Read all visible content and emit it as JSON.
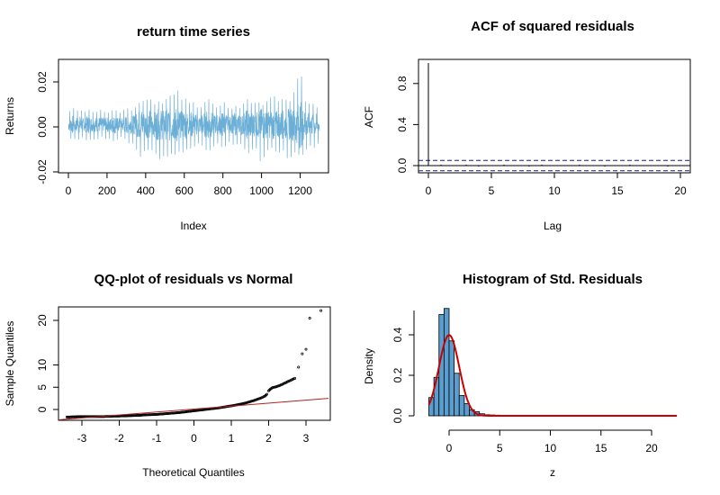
{
  "chart_data": [
    {
      "type": "line",
      "title": "return time series",
      "xlabel": "Index",
      "ylabel": "Returns",
      "xlim": [
        0,
        1300
      ],
      "ylim": [
        -0.02,
        0.03
      ],
      "x_ticks": [
        0,
        200,
        400,
        600,
        800,
        1000,
        1200
      ],
      "y_ticks": [
        -0.02,
        0.0,
        0.02
      ],
      "y_tick_labels": [
        "-0.02",
        "0.00",
        "0.02"
      ],
      "color": "#6baed6",
      "series": [
        {
          "x": [
            0,
            20,
            40,
            60,
            80,
            100,
            120,
            140,
            160,
            180,
            200,
            220,
            240,
            260,
            280,
            300,
            320,
            340,
            360,
            380,
            400,
            420,
            440,
            460,
            480,
            500,
            520,
            540,
            560,
            580,
            600,
            620,
            640,
            660,
            680,
            700,
            720,
            740,
            760,
            780,
            800,
            820,
            840,
            860,
            880,
            900,
            920,
            940,
            960,
            980,
            1000,
            1020,
            1040,
            1060,
            1080,
            1100,
            1120,
            1140,
            1160,
            1180,
            1200,
            1220,
            1240,
            1260,
            1280,
            1300
          ],
          "high": [
            0.006,
            0.009,
            0.007,
            0.008,
            0.006,
            0.008,
            0.007,
            0.006,
            0.008,
            0.007,
            0.006,
            0.007,
            0.008,
            0.006,
            0.007,
            0.009,
            0.007,
            0.008,
            0.01,
            0.012,
            0.011,
            0.014,
            0.009,
            0.012,
            0.01,
            0.011,
            0.015,
            0.012,
            0.019,
            0.011,
            0.014,
            0.01,
            0.012,
            0.009,
            0.008,
            0.01,
            0.013,
            0.011,
            0.009,
            0.008,
            0.012,
            0.009,
            0.007,
            0.01,
            0.008,
            0.009,
            0.013,
            0.011,
            0.01,
            0.012,
            0.009,
            0.011,
            0.012,
            0.015,
            0.011,
            0.012,
            0.013,
            0.01,
            0.014,
            0.018,
            0.028,
            0.012,
            0.01,
            0.011,
            0.009,
            0.008
          ],
          "low": [
            -0.004,
            -0.006,
            -0.005,
            -0.006,
            -0.004,
            -0.007,
            -0.005,
            -0.006,
            -0.005,
            -0.004,
            -0.006,
            -0.005,
            -0.007,
            -0.005,
            -0.004,
            -0.006,
            -0.008,
            -0.007,
            -0.012,
            -0.014,
            -0.009,
            -0.011,
            -0.01,
            -0.013,
            -0.015,
            -0.012,
            -0.014,
            -0.011,
            -0.013,
            -0.01,
            -0.012,
            -0.009,
            -0.01,
            -0.008,
            -0.007,
            -0.009,
            -0.011,
            -0.01,
            -0.008,
            -0.007,
            -0.01,
            -0.008,
            -0.006,
            -0.009,
            -0.007,
            -0.008,
            -0.011,
            -0.012,
            -0.009,
            -0.01,
            -0.018,
            -0.011,
            -0.01,
            -0.009,
            -0.012,
            -0.011,
            -0.01,
            -0.016,
            -0.012,
            -0.011,
            -0.013,
            -0.012,
            -0.009,
            -0.008,
            -0.01,
            -0.006
          ]
        }
      ]
    },
    {
      "type": "bar",
      "title": "ACF of squared residuals",
      "xlabel": "Lag",
      "ylabel": "ACF",
      "xlim": [
        -0.7,
        20.7
      ],
      "ylim": [
        -0.05,
        1.02
      ],
      "x_ticks": [
        0,
        5,
        10,
        15,
        20
      ],
      "y_ticks": [
        0.0,
        0.4,
        0.8
      ],
      "y_tick_labels": [
        "0.0",
        "0.4",
        "0.8"
      ],
      "lags": [
        0,
        1,
        2,
        3,
        4,
        5,
        6,
        7,
        8,
        9,
        10,
        11,
        12,
        13,
        14,
        15,
        16,
        17,
        18,
        19,
        20
      ],
      "values": [
        1.0,
        0.01,
        0.0,
        0.01,
        -0.01,
        0.0,
        0.01,
        0.0,
        -0.01,
        0.01,
        0.0,
        0.0,
        0.01,
        0.0,
        -0.01,
        0.0,
        0.01,
        0.0,
        0.0,
        -0.01,
        0.0
      ],
      "confidence_band": [
        -0.05,
        0.05
      ],
      "zero_line": 0.0
    },
    {
      "type": "scatter",
      "title": "QQ-plot of residuals vs Normal",
      "xlabel": "Theoretical Quantiles",
      "ylabel": "Sample Quantiles",
      "xlim": [
        -3.6,
        3.6
      ],
      "ylim": [
        -2.3,
        23.3
      ],
      "x_ticks": [
        -3,
        -2,
        -1,
        0,
        1,
        2,
        3
      ],
      "y_ticks": [
        0,
        5,
        10,
        20
      ],
      "reference_line": {
        "x": [
          -3.6,
          3.6
        ],
        "y": [
          -2.3,
          2.5
        ],
        "color": "#b22222"
      },
      "points": [
        [
          -3.4,
          -1.7
        ],
        [
          -3.1,
          -1.6
        ],
        [
          -2.95,
          -1.6
        ],
        [
          -2.85,
          -1.6
        ],
        [
          -2.75,
          -1.6
        ],
        [
          -2.65,
          -1.6
        ],
        [
          -2.55,
          -1.6
        ],
        [
          -2.45,
          -1.6
        ],
        [
          -2.35,
          -1.55
        ],
        [
          -2.25,
          -1.55
        ],
        [
          -2.15,
          -1.5
        ],
        [
          -2.05,
          -1.5
        ],
        [
          -1.95,
          -1.45
        ],
        [
          -1.85,
          -1.45
        ],
        [
          -1.75,
          -1.4
        ],
        [
          -1.6,
          -1.35
        ],
        [
          -1.45,
          -1.3
        ],
        [
          -1.3,
          -1.2
        ],
        [
          -1.15,
          -1.15
        ],
        [
          -1.0,
          -1.1
        ],
        [
          -0.85,
          -1.0
        ],
        [
          -0.7,
          -0.9
        ],
        [
          -0.55,
          -0.8
        ],
        [
          -0.4,
          -0.7
        ],
        [
          -0.25,
          -0.55
        ],
        [
          -0.1,
          -0.4
        ],
        [
          0.05,
          -0.25
        ],
        [
          0.2,
          -0.1
        ],
        [
          0.35,
          0.05
        ],
        [
          0.5,
          0.2
        ],
        [
          0.65,
          0.35
        ],
        [
          0.8,
          0.55
        ],
        [
          0.95,
          0.75
        ],
        [
          1.1,
          0.95
        ],
        [
          1.25,
          1.2
        ],
        [
          1.4,
          1.5
        ],
        [
          1.5,
          1.75
        ],
        [
          1.6,
          2.0
        ],
        [
          1.7,
          2.3
        ],
        [
          1.8,
          2.6
        ],
        [
          1.9,
          3.0
        ],
        [
          1.95,
          3.4
        ],
        [
          2.0,
          4.2
        ],
        [
          2.05,
          4.6
        ],
        [
          2.1,
          4.9
        ],
        [
          2.2,
          5.1
        ],
        [
          2.3,
          5.4
        ],
        [
          2.4,
          5.8
        ],
        [
          2.5,
          6.2
        ],
        [
          2.6,
          6.6
        ],
        [
          2.7,
          7.0
        ],
        [
          2.8,
          9.5
        ],
        [
          2.9,
          12.5
        ],
        [
          3.0,
          13.5
        ],
        [
          3.1,
          20.5
        ],
        [
          3.4,
          22.2
        ]
      ]
    },
    {
      "type": "bar",
      "title": "Histogram of Std. Residuals",
      "xlabel": "z",
      "ylabel": "Density",
      "xlim": [
        -2.5,
        23.3
      ],
      "ylim": [
        -0.015,
        0.53
      ],
      "x_ticks": [
        0,
        5,
        10,
        15,
        20
      ],
      "y_ticks": [
        0.0,
        0.2,
        0.4
      ],
      "y_tick_labels": [
        "0.0",
        "0.2",
        "0.4"
      ],
      "bin_width": 0.5,
      "bin_starts": [
        -2.0,
        -1.5,
        -1.0,
        -0.5,
        0.0,
        0.5,
        1.0,
        1.5,
        2.0,
        2.5,
        3.0,
        3.5,
        4.0,
        4.5,
        5.0,
        5.5,
        6.0
      ],
      "values": [
        0.09,
        0.19,
        0.5,
        0.53,
        0.37,
        0.21,
        0.1,
        0.06,
        0.03,
        0.02,
        0.01,
        0.005,
        0.004,
        0.003,
        0.002,
        0.001,
        0.002
      ],
      "bar_color": "#5a9ed0",
      "density_curve": {
        "type": "normal",
        "mean": 0,
        "sd": 1,
        "x_range": [
          -2,
          22.5
        ],
        "color": "#cc0000"
      }
    }
  ]
}
